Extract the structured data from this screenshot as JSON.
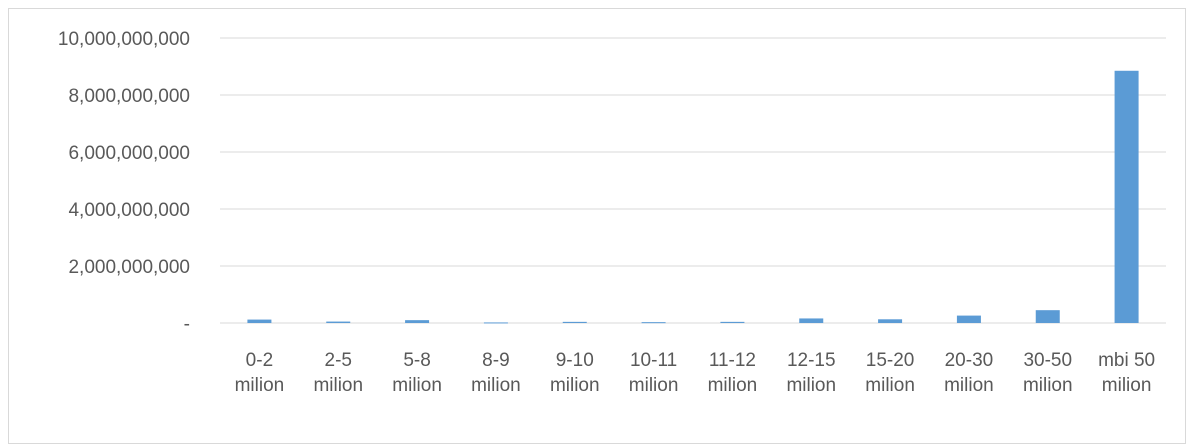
{
  "chart_data": {
    "type": "bar",
    "categories": [
      [
        "0-2",
        "milion"
      ],
      [
        "2-5",
        "milion"
      ],
      [
        "5-8",
        "milion"
      ],
      [
        "8-9",
        "milion"
      ],
      [
        "9-10",
        "milion"
      ],
      [
        "10-11",
        "milion"
      ],
      [
        "11-12",
        "milion"
      ],
      [
        "12-15",
        "milion"
      ],
      [
        "15-20",
        "milion"
      ],
      [
        "20-30",
        "milion"
      ],
      [
        "30-50",
        "milion"
      ],
      [
        "mbi 50",
        "milion"
      ]
    ],
    "values": [
      120000000,
      50000000,
      100000000,
      20000000,
      40000000,
      30000000,
      40000000,
      160000000,
      130000000,
      260000000,
      450000000,
      8850000000
    ],
    "ylim": [
      0,
      10000000000
    ],
    "yticks": [
      {
        "value": 0,
        "label": "-"
      },
      {
        "value": 2000000000,
        "label": "2,000,000,000"
      },
      {
        "value": 4000000000,
        "label": "4,000,000,000"
      },
      {
        "value": 6000000000,
        "label": "6,000,000,000"
      },
      {
        "value": 8000000000,
        "label": "8,000,000,000"
      },
      {
        "value": 10000000000,
        "label": "10,000,000,000"
      }
    ],
    "grid": true,
    "legend": "none",
    "colors": {
      "bar": "#5b9bd5",
      "grid": "#d9d9d9",
      "axis": "#d9d9d9",
      "text": "#595959"
    }
  }
}
